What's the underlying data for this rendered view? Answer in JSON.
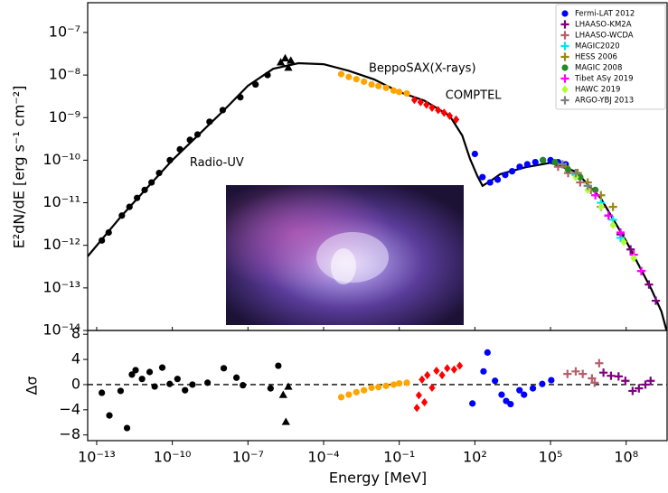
{
  "chart_data": [
    {
      "type": "scatter",
      "ylabel": "E²dN/dE [erg s⁻¹ cm⁻²]",
      "log_x": true,
      "log_y": true,
      "xlim": [
        4.4e-14,
        4200000000.0
      ],
      "ylim": [
        1e-14,
        5e-07
      ],
      "yticks": [
        {
          "value": 1e-14,
          "label": "10⁻¹⁴"
        },
        {
          "value": 1e-13,
          "label": "10⁻¹³"
        },
        {
          "value": 1e-12,
          "label": "10⁻¹²"
        },
        {
          "value": 1e-11,
          "label": "10⁻¹¹"
        },
        {
          "value": 1e-10,
          "label": "10⁻¹⁰"
        },
        {
          "value": 1e-09,
          "label": "10⁻⁹"
        },
        {
          "value": 1e-08,
          "label": "10⁻⁸"
        },
        {
          "value": 1e-07,
          "label": "10⁻⁷"
        }
      ],
      "legend": "upper right",
      "annotations": [
        {
          "text": "Radio-UV",
          "color": "#000000",
          "x": 4.9e-10,
          "y": 8.5e-11
        },
        {
          "text": "BeppoSAX(X-rays)",
          "color": "#ffa500",
          "x": 0.0062,
          "y": 1.4e-08
        },
        {
          "text": "COMPTEL",
          "color": "#ff0000",
          "x": 6.8,
          "y": 3.3e-09
        }
      ],
      "series": [
        {
          "type": "line",
          "color": "#000000",
          "x": [
            4.4e-14,
            1e-12,
            1e-10,
            1e-08,
            1e-07,
            1e-06,
            1e-05,
            0.0001,
            0.001,
            0.01,
            0.1,
            1,
            10,
            31.6,
            63,
            126,
            200,
            500,
            1000.0,
            10000.0,
            100000.0,
            1000000.0,
            10000000.0,
            100000000.0,
            1000000000.0,
            2500000000.0,
            4000000000.0
          ],
          "values": [
            5.5e-13,
            5e-12,
            1e-10,
            1.4e-09,
            5.6e-09,
            1.4e-08,
            1.9e-08,
            1.8e-08,
            1.26e-08,
            7.9e-09,
            4e-09,
            2.5e-09,
            1.1e-09,
            3.8e-10,
            1.1e-10,
            4.2e-11,
            2.5e-11,
            3.5e-11,
            4.7e-11,
            6.8e-11,
            8.7e-11,
            5.4e-11,
            1.26e-11,
            1.26e-12,
            9.3e-14,
            2.8e-14,
            1e-14
          ]
        },
        {
          "color": "#000000",
          "marker": "circle",
          "x": [
            1.6e-13,
            3e-13,
            1e-12,
            2e-12,
            4e-12,
            8e-12,
            1.5e-11,
            3e-11,
            8e-11,
            2e-10,
            5e-10,
            1e-09,
            3e-09,
            1e-08,
            5e-08,
            2e-07,
            6e-07
          ],
          "values": [
            1.3e-12,
            2e-12,
            5e-12,
            8e-12,
            1.3e-11,
            2e-11,
            3e-11,
            5e-11,
            1e-10,
            1.8e-10,
            3e-10,
            4e-10,
            8e-10,
            1.5e-09,
            3e-09,
            6e-09,
            1e-08
          ]
        },
        {
          "color": "#000000",
          "marker": "triangle",
          "x": [
            2e-06,
            3e-06,
            4e-06,
            5e-06
          ],
          "values": [
            2e-08,
            2.5e-08,
            1.5e-08,
            2.2e-08
          ]
        },
        {
          "color": "#ffa500",
          "marker": "circle",
          "x": [
            0.0005,
            0.001,
            0.002,
            0.004,
            0.008,
            0.015,
            0.03,
            0.06,
            0.1,
            0.2
          ],
          "values": [
            1.05e-08,
            9e-09,
            8e-09,
            7e-09,
            6e-09,
            5.5e-09,
            5e-09,
            4.3e-09,
            4e-09,
            3.7e-09
          ]
        },
        {
          "color": "#ff0000",
          "marker": "diamond",
          "x": [
            0.4,
            0.7,
            1.2,
            2,
            3.5,
            6,
            10,
            18
          ],
          "values": [
            2.6e-09,
            2.3e-09,
            2e-09,
            1.7e-09,
            1.5e-09,
            1.3e-09,
            1.1e-09,
            9e-10
          ]
        },
        {
          "name": "Fermi-LAT 2012",
          "color": "#0000ff",
          "marker": "circle",
          "x": [
            100,
            200,
            400,
            800,
            1600,
            3000,
            6000,
            12000,
            25000,
            50000,
            100000.0,
            200000.0,
            400000.0
          ],
          "values": [
            1.4e-10,
            4e-11,
            3e-11,
            3.5e-11,
            4.5e-11,
            5.5e-11,
            7e-11,
            8e-11,
            9e-11,
            1e-10,
            1e-10,
            9e-11,
            8e-11
          ]
        },
        {
          "name": "LHAASO-KM2A",
          "color": "#800080",
          "marker": "plus",
          "x": [
            20000000.0,
            60000000.0,
            150000000.0,
            400000000.0,
            800000000.0,
            1500000000.0
          ],
          "values": [
            5e-12,
            1.8e-12,
            8e-13,
            2.5e-13,
            1.2e-13,
            5e-14
          ]
        },
        {
          "name": "LHAASO-WCDA",
          "color": "#b5616b",
          "marker": "plus",
          "x": [
            200000.0,
            500000.0,
            1500000.0,
            4000000.0,
            10000000.0
          ],
          "values": [
            7e-11,
            5e-11,
            3e-11,
            2e-11,
            8e-12
          ]
        },
        {
          "name": "MAGIC2020",
          "color": "#00e5ee",
          "marker": "plus",
          "x": [
            1000000.0,
            3000000.0,
            10000000.0,
            30000000.0,
            60000000.0
          ],
          "values": [
            4.5e-11,
            2.5e-11,
            1e-11,
            4e-12,
            1.5e-12
          ]
        },
        {
          "name": "HESS 2006",
          "color": "#9a8a12",
          "marker": "plus",
          "x": [
            400000.0,
            1200000.0,
            3000000.0,
            10000000.0,
            30000000.0
          ],
          "values": [
            7e-11,
            5e-11,
            3e-11,
            1.5e-11,
            8e-12
          ]
        },
        {
          "name": "MAGIC 2008",
          "color": "#228b22",
          "marker": "circle",
          "x": [
            50000.0,
            150000.0,
            500000.0,
            1500000.0,
            6000000.0
          ],
          "values": [
            1e-10,
            9e-11,
            6e-11,
            4e-11,
            2e-11
          ]
        },
        {
          "name": "Tibet ASγ 2019",
          "color": "#ff00ff",
          "marker": "plus",
          "x": [
            6000000.0,
            20000000.0,
            60000000.0,
            200000000.0,
            400000000.0
          ],
          "values": [
            1.5e-11,
            5e-12,
            2e-12,
            6e-13,
            2.5e-13
          ]
        },
        {
          "name": "HAWC 2019",
          "color": "#adff2f",
          "marker": "diamond",
          "x": [
            1000000.0,
            3000000.0,
            10000000.0,
            30000000.0,
            80000000.0,
            200000000.0
          ],
          "values": [
            4e-11,
            2e-11,
            8e-12,
            3e-12,
            1.2e-12,
            5e-13
          ]
        },
        {
          "name": "ARGO-YBJ 2013",
          "color": "#808080",
          "marker": "plus",
          "x": [
            300000.0,
            1000000.0,
            3000000.0
          ],
          "values": [
            8e-11,
            5e-11,
            2.5e-11
          ]
        }
      ]
    },
    {
      "type": "scatter",
      "ylabel": "Δσ",
      "xlabel": "Energy [MeV]",
      "log_x": true,
      "log_y": false,
      "xlim": [
        4.4e-14,
        4200000000.0
      ],
      "ylim": [
        -8.9,
        8.6
      ],
      "xticks": [
        {
          "value": 1e-13,
          "label": "10⁻¹³"
        },
        {
          "value": 1e-10,
          "label": "10⁻¹⁰"
        },
        {
          "value": 1e-07,
          "label": "10⁻⁷"
        },
        {
          "value": 0.0001,
          "label": "10⁻⁴"
        },
        {
          "value": 0.1,
          "label": "10⁻¹"
        },
        {
          "value": 100,
          "label": "10²"
        },
        {
          "value": 100000.0,
          "label": "10⁵"
        },
        {
          "value": 100000000.0,
          "label": "10⁸"
        }
      ],
      "yticks": [
        {
          "value": -8,
          "label": "−8"
        },
        {
          "value": -4,
          "label": "−4"
        },
        0,
        4,
        8
      ],
      "reference_line": 0,
      "series": [
        {
          "color": "#000000",
          "marker": "circle",
          "x": [
            1.6e-13,
            3.2e-13,
            8.9e-13,
            1.6e-12,
            2.5e-12,
            3.5e-12,
            6.3e-12,
            1.26e-11,
            2e-11,
            4e-11,
            7.9e-11,
            1.6e-10,
            3.2e-10,
            6.3e-10,
            2.5e-09,
            1.1e-08,
            3.5e-08,
            6.3e-08,
            7.9e-07,
            1.6e-06
          ],
          "values": [
            -1.3,
            -4.9,
            -1,
            -6.9,
            1.6,
            2.3,
            0.9,
            2,
            -0.3,
            2.7,
            0.1,
            0.9,
            -0.9,
            0,
            0.3,
            2.6,
            1.1,
            -0.1,
            -0.6,
            3
          ]
        },
        {
          "color": "#000000",
          "marker": "triangle",
          "x": [
            2.5e-06,
            3.2e-06,
            4e-06
          ],
          "values": [
            -1.6,
            -5.9,
            -0.3
          ]
        },
        {
          "color": "#ffa500",
          "marker": "circle",
          "x": [
            0.0005,
            0.001,
            0.002,
            0.004,
            0.008,
            0.015,
            0.03,
            0.06,
            0.1,
            0.2
          ],
          "values": [
            -2,
            -1.6,
            -1.2,
            -0.9,
            -0.5,
            -0.4,
            -0.2,
            0,
            0.2,
            0.3
          ]
        },
        {
          "color": "#ff0000",
          "marker": "diamond",
          "x": [
            0.5,
            0.6,
            0.8,
            1,
            1.3,
            2,
            3,
            5,
            8,
            15,
            25
          ],
          "values": [
            -3.7,
            -1.7,
            0.8,
            -2.8,
            1.5,
            -0.5,
            2.2,
            1.5,
            2.6,
            2.4,
            3
          ]
        },
        {
          "color": "#0000ff",
          "marker": "circle",
          "x": [
            80,
            220,
            316,
            630,
            1150,
            1740,
            2600,
            5900,
            8900,
            20000.0,
            47000.0,
            107000.0
          ],
          "values": [
            -3,
            2.1,
            5.1,
            0.6,
            -1.6,
            -2.6,
            -3.1,
            -0.9,
            -1.6,
            -0.6,
            0.1,
            0.7
          ]
        },
        {
          "color": "#b5616b",
          "marker": "plus",
          "x": [
            470000.0,
            1000000.0,
            1900000.0,
            4400000.0,
            5600000.0,
            8500000.0
          ],
          "values": [
            1.7,
            2.1,
            1.7,
            1,
            0.3,
            3.4
          ]
        },
        {
          "color": "#800080",
          "marker": "plus",
          "x": [
            12600000.0,
            25000000.0,
            50000000.0,
            93000000.0,
            180000000.0,
            320000000.0,
            580000000.0,
            930000000.0
          ],
          "values": [
            1.9,
            1.4,
            1.3,
            0.6,
            -1,
            -0.6,
            0,
            0.6
          ]
        }
      ]
    }
  ]
}
